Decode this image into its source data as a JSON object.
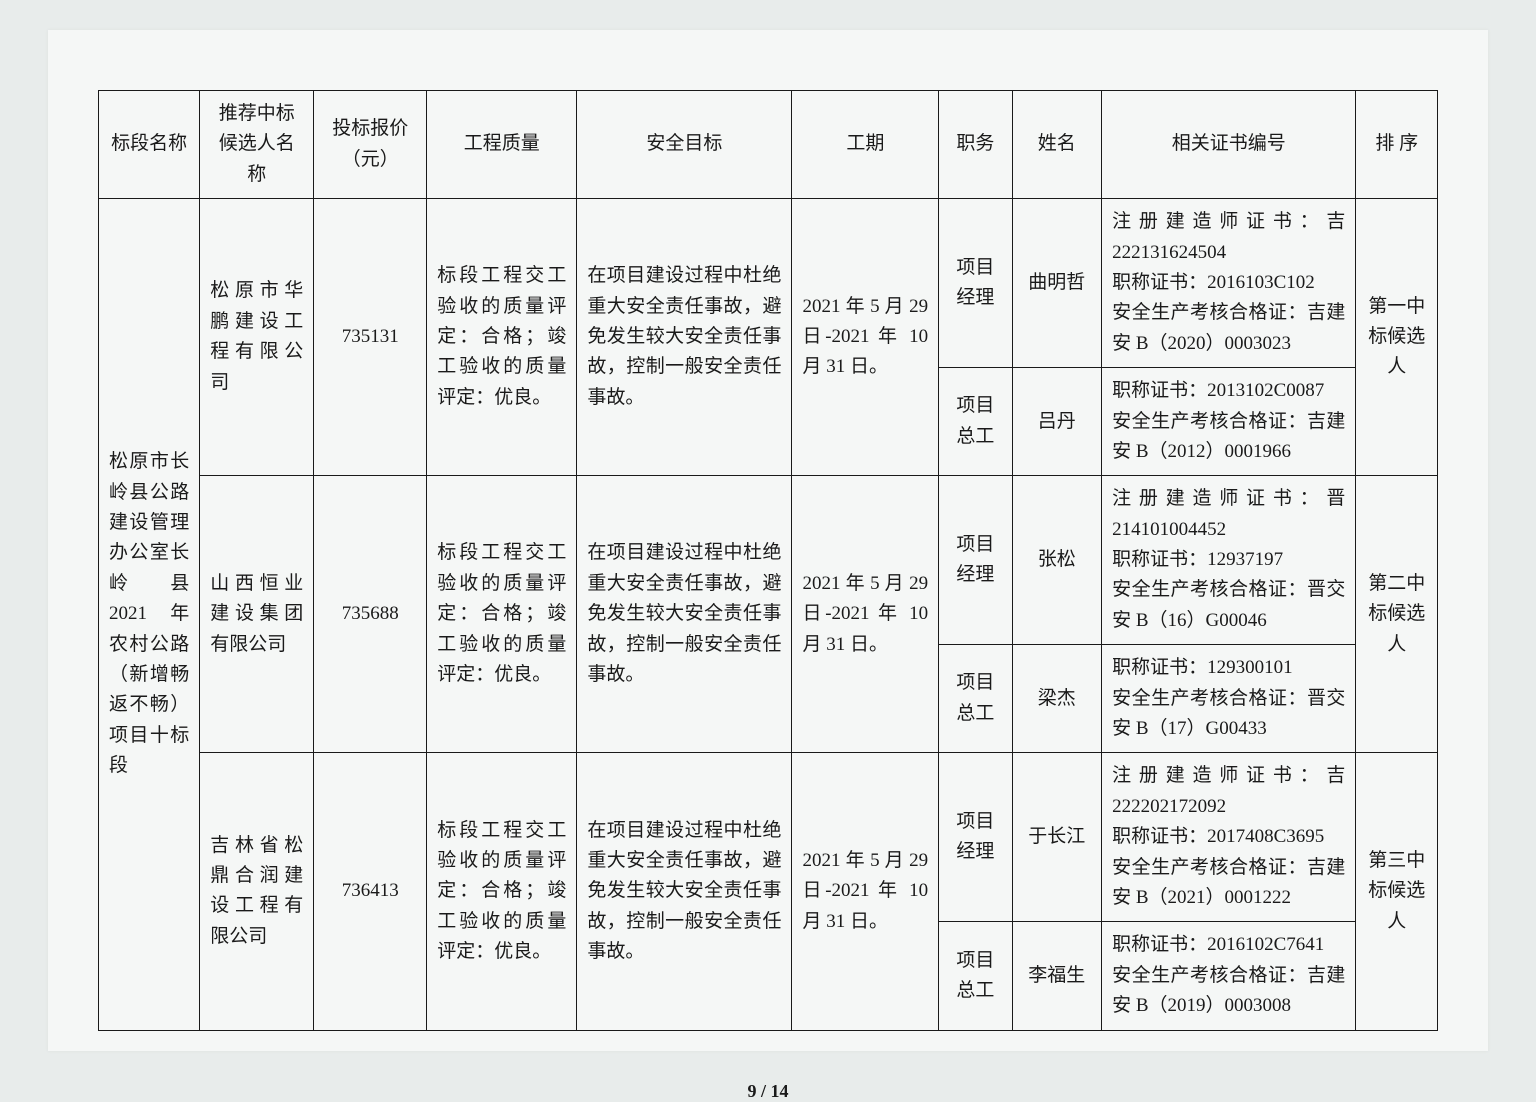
{
  "headers": {
    "section": "标段名称",
    "company": "推荐中标候选人名称",
    "price": "投标报价（元）",
    "quality": "工程质量",
    "safety": "安全目标",
    "period": "工期",
    "role": "职务",
    "name": "姓名",
    "cert": "相关证书编号",
    "rank": "排 序"
  },
  "section_name": "松原市长岭县公路建设管理办公室长岭县 2021 年农村公路（新增畅返不畅）项目十标段",
  "candidates": [
    {
      "company": "松原市华鹏建设工程有限公司",
      "price": "735131",
      "quality": "标段工程交工验收的质量评定：合格；竣工验收的质量评定：优良。",
      "safety": "在项目建设过程中杜绝重大安全责任事故，避免发生较大安全责任事故，控制一般安全责任事故。",
      "period": "2021 年 5 月 29 日-2021 年 10 月 31 日。",
      "rank": "第一中标候选人",
      "roles": [
        {
          "role": "项目经理",
          "name": "曲明哲",
          "cert": "注册建造师证书：吉 222131624504\n职称证书：2016103C102\n安全生产考核合格证：吉建安 B（2020）0003023"
        },
        {
          "role": "项目总工",
          "name": "吕丹",
          "cert": "职称证书：2013102C0087\n安全生产考核合格证：吉建安 B（2012）0001966"
        }
      ]
    },
    {
      "company": "山西恒业建设集团有限公司",
      "price": "735688",
      "quality": "标段工程交工验收的质量评定：合格；竣工验收的质量评定：优良。",
      "safety": "在项目建设过程中杜绝重大安全责任事故，避免发生较大安全责任事故，控制一般安全责任事故。",
      "period": "2021 年 5 月 29 日-2021 年 10 月 31 日。",
      "rank": "第二中标候选人",
      "roles": [
        {
          "role": "项目经理",
          "name": "张松",
          "cert": "注册建造师证书：晋 214101004452\n职称证书：12937197\n安全生产考核合格证：晋交安 B（16）G00046"
        },
        {
          "role": "项目总工",
          "name": "梁杰",
          "cert": "职称证书：129300101\n安全生产考核合格证：晋交安 B（17）G00433"
        }
      ]
    },
    {
      "company": "吉林省松鼎合润建设工程有限公司",
      "price": "736413",
      "quality": "标段工程交工验收的质量评定：合格；竣工验收的质量评定：优良。",
      "safety": "在项目建设过程中杜绝重大安全责任事故，避免发生较大安全责任事故，控制一般安全责任事故。",
      "period": "2021 年 5 月 29 日-2021 年 10 月 31 日。",
      "rank": "第三中标候选人",
      "roles": [
        {
          "role": "项目经理",
          "name": "于长江",
          "cert": "注册建造师证书：吉 222202172092\n职称证书：2017408C3695\n安全生产考核合格证：吉建安 B（2021）0001222"
        },
        {
          "role": "项目总工",
          "name": "李福生",
          "cert": "职称证书：2016102C7641\n安全生产考核合格证：吉建安 B（2019）0003008"
        }
      ]
    }
  ],
  "page_number": "9 / 14",
  "style": {
    "border_color": "#1a1a1a",
    "background": "#f5f7f6",
    "font_size_pt": 14
  }
}
